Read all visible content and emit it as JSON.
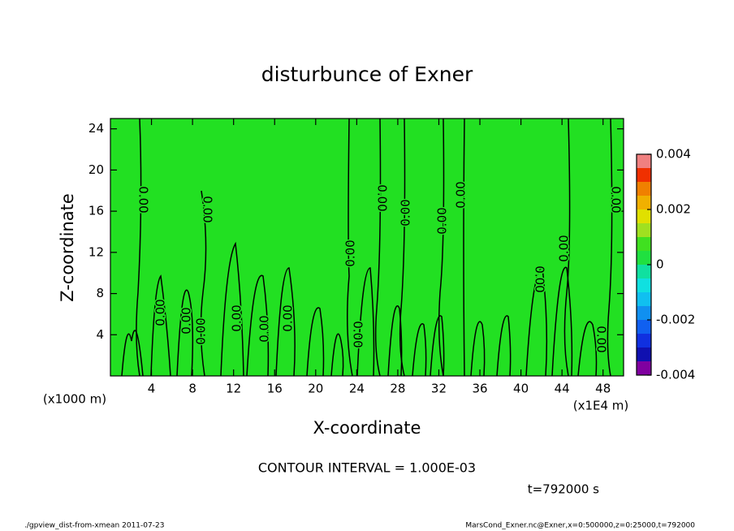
{
  "chart_data": {
    "type": "contour",
    "title": "disturbunce of Exner",
    "x_label": "X-coordinate",
    "y_label": "Z-coordinate",
    "x_unit_left": "(x1000 m)",
    "x_unit_right": "(x1E4 m)",
    "xlim": [
      0,
      50
    ],
    "ylim": [
      0,
      25
    ],
    "xticks": [
      4,
      8,
      12,
      16,
      20,
      24,
      28,
      32,
      36,
      40,
      44,
      48
    ],
    "yticks": [
      4,
      8,
      12,
      16,
      20,
      24
    ],
    "field_color": "#22e022",
    "contour_labels": [
      "0.00",
      "0.00",
      "0.00",
      "0.00",
      "0.00",
      "0.00",
      "0.00",
      "0.00",
      "0.00",
      "0.00",
      "0.00",
      "0.00",
      "0.00",
      "0.00",
      "0.00",
      "0.00",
      "0.00",
      "0.00"
    ],
    "colorbar": {
      "levels": [
        -0.004,
        -0.0035,
        -0.003,
        -0.0025,
        -0.002,
        -0.0015,
        -0.001,
        -0.0005,
        0,
        0.0005,
        0.001,
        0.0015,
        0.002,
        0.0025,
        0.003,
        0.0035,
        0.004
      ],
      "colors": [
        "#8000a0",
        "#1010b0",
        "#1030e0",
        "#1060f0",
        "#1090f0",
        "#10c0f0",
        "#10e0e0",
        "#10e0a0",
        "#20e040",
        "#40e020",
        "#a0e020",
        "#e0e000",
        "#f0b000",
        "#f08000",
        "#f03000",
        "#f08080"
      ],
      "ticks": [
        0.004,
        0.002,
        0,
        -0.002,
        -0.004
      ]
    },
    "contour_interval": "CONTOUR INTERVAL = 1.000E-03",
    "time_label": "t=792000 s",
    "footer_left": "./gpview_dist-from-xmean  2011-07-23",
    "footer_right": "MarsCond_Exner.nc@Exner,x=0:500000,z=0:25000,t=792000"
  }
}
